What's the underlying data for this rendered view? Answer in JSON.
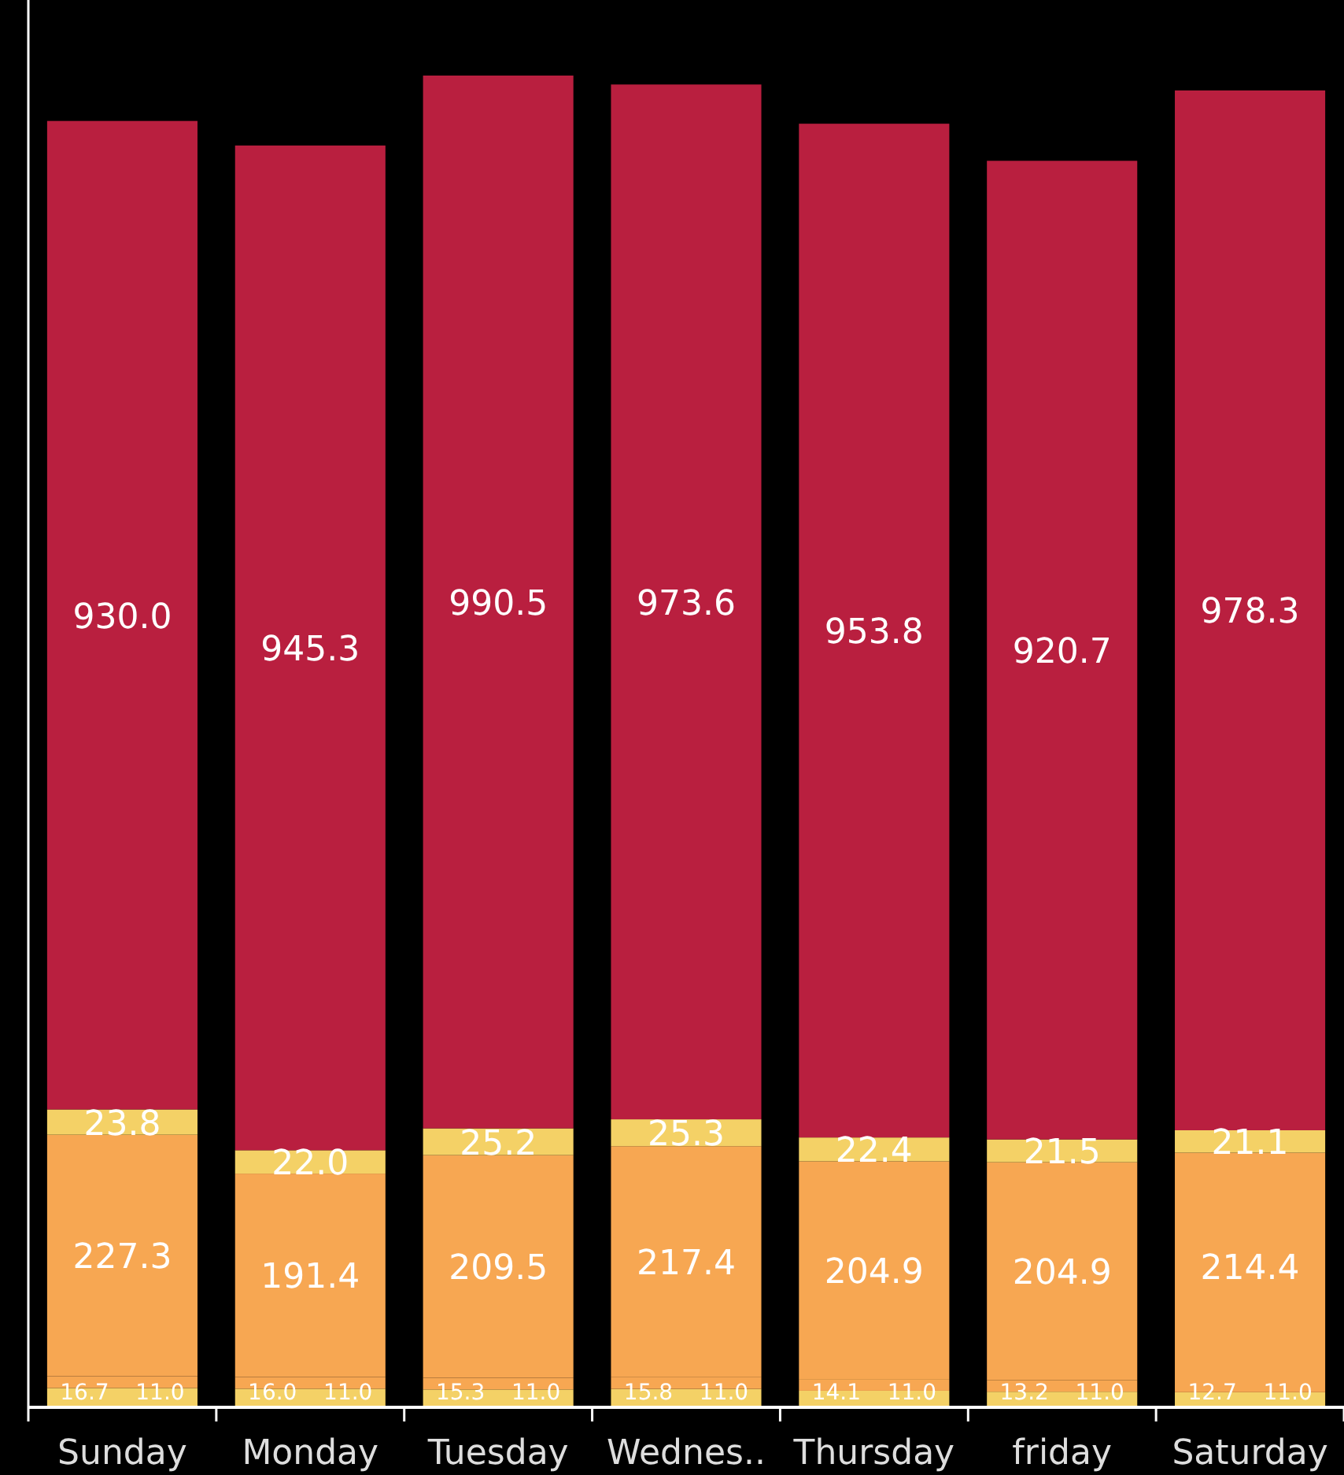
{
  "chart_data": {
    "type": "bar",
    "stacked": true,
    "categories": [
      "Sunday",
      "Monday",
      "Tuesday",
      "Wednes..",
      "Thursday",
      "friday",
      "Saturday"
    ],
    "series": [
      {
        "color": "#f4d166",
        "values": [
          16.7,
          16.0,
          15.3,
          15.8,
          14.1,
          13.2,
          12.7
        ],
        "value_labels": [
          "16.7",
          "16.0",
          "15.3",
          "15.8",
          "14.1",
          "13.2",
          "12.7"
        ]
      },
      {
        "color": "#f7a752",
        "values": [
          11.0,
          11.0,
          11.0,
          11.0,
          11.0,
          11.0,
          11.0
        ],
        "value_labels": [
          "11.0",
          "11.0",
          "11.0",
          "11.0",
          "11.0",
          "11.0",
          "11.0"
        ]
      },
      {
        "color": "#f7a752",
        "values": [
          227.3,
          191.4,
          209.5,
          217.4,
          204.9,
          204.9,
          214.4
        ],
        "value_labels": [
          "227.3",
          "191.4",
          "209.5",
          "217.4",
          "204.9",
          "204.9",
          "214.4"
        ]
      },
      {
        "color": "#f4d166",
        "values": [
          23.8,
          22.0,
          25.2,
          25.3,
          22.4,
          21.5,
          21.1
        ],
        "value_labels": [
          "23.8",
          "22.0",
          "25.2",
          "25.3",
          "22.4",
          "21.5",
          "21.1"
        ]
      },
      {
        "color": "#b91f3f",
        "values": [
          930.0,
          945.3,
          990.5,
          973.6,
          953.8,
          920.7,
          978.3
        ],
        "value_labels": [
          "930.0",
          "945.3",
          "990.5",
          "973.6",
          "953.8",
          "920.7",
          "978.3"
        ]
      }
    ]
  }
}
